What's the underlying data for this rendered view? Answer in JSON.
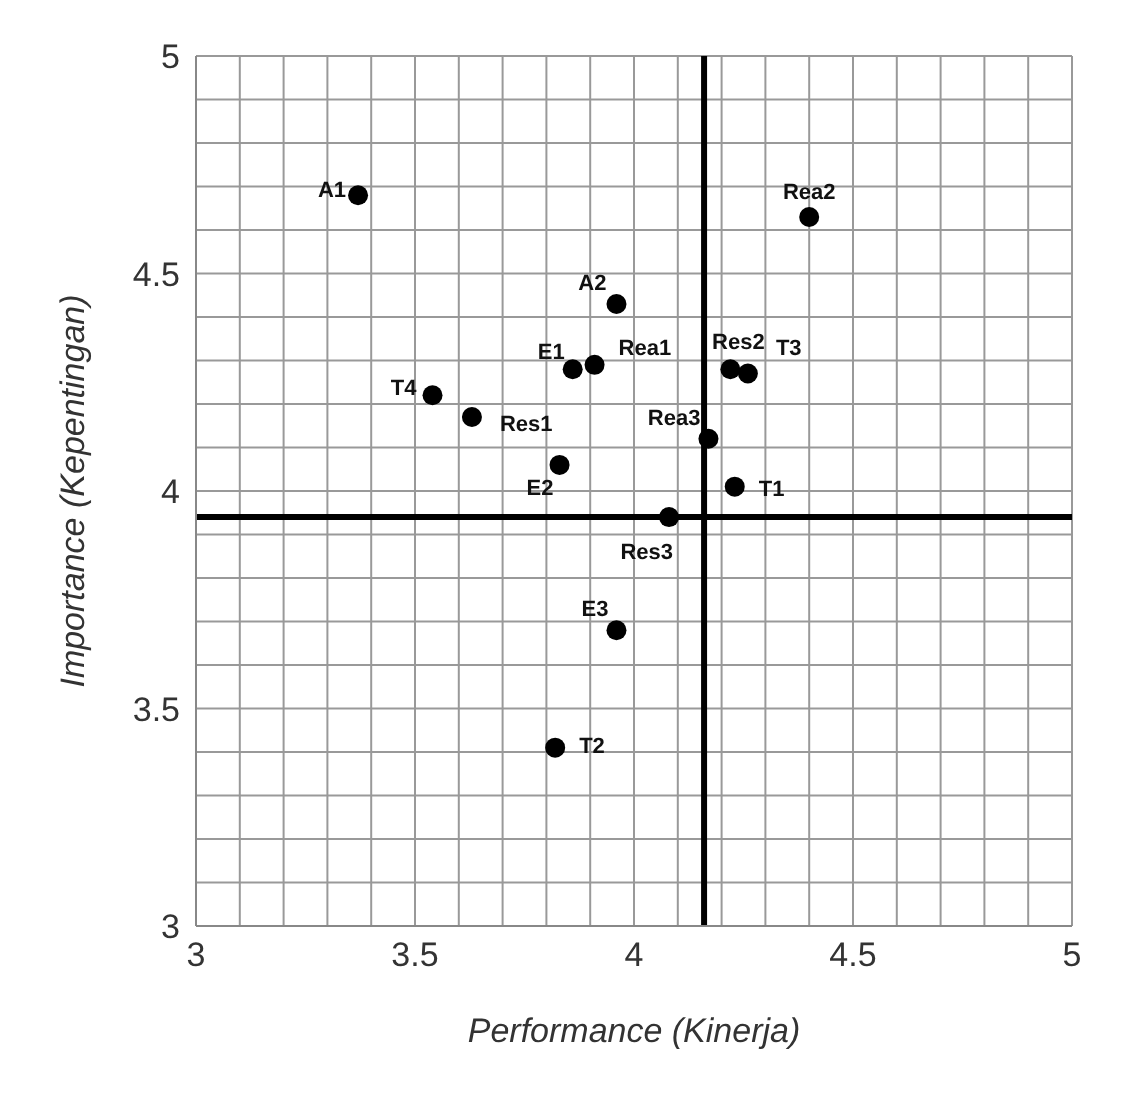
{
  "chart_data": {
    "type": "scatter",
    "xlabel": "Performance (Kinerja)",
    "ylabel": "Importance (Kepentingan)",
    "x": [
      3.37,
      4.4,
      3.96,
      3.86,
      3.91,
      4.22,
      4.26,
      3.54,
      3.63,
      4.17,
      3.83,
      4.23,
      4.08,
      3.96,
      3.82
    ],
    "series": [
      {
        "color": "#000000",
        "values": [
          4.68,
          4.63,
          4.43,
          4.28,
          4.29,
          4.28,
          4.27,
          4.22,
          4.17,
          4.12,
          4.06,
          4.01,
          3.94,
          3.68,
          3.41
        ]
      }
    ],
    "marker": "circle",
    "xlim": [
      3,
      5
    ],
    "ylim": [
      3,
      5
    ],
    "xticks": [
      3,
      {
        "value": 3.1,
        "label": null
      },
      {
        "value": 3.2,
        "label": null
      },
      {
        "value": 3.3,
        "label": null
      },
      {
        "value": 3.4,
        "label": null
      },
      3.5,
      {
        "value": 3.6,
        "label": null
      },
      {
        "value": 3.7,
        "label": null
      },
      {
        "value": 3.8,
        "label": null
      },
      {
        "value": 3.9,
        "label": null
      },
      4,
      {
        "value": 4.1,
        "label": null
      },
      {
        "value": 4.2,
        "label": null
      },
      {
        "value": 4.3,
        "label": null
      },
      {
        "value": 4.4,
        "label": null
      },
      4.5,
      {
        "value": 4.6,
        "label": null
      },
      {
        "value": 4.7,
        "label": null
      },
      {
        "value": 4.8,
        "label": null
      },
      {
        "value": 4.9,
        "label": null
      },
      5
    ],
    "yticks": [
      3,
      {
        "value": 3.1,
        "label": null
      },
      {
        "value": 3.2,
        "label": null
      },
      {
        "value": 3.3,
        "label": null
      },
      {
        "value": 3.4,
        "label": null
      },
      3.5,
      {
        "value": 3.6,
        "label": null
      },
      {
        "value": 3.7,
        "label": null
      },
      {
        "value": 3.8,
        "label": null
      },
      {
        "value": 3.9,
        "label": null
      },
      4,
      {
        "value": 4.1,
        "label": null
      },
      {
        "value": 4.2,
        "label": null
      },
      {
        "value": 4.3,
        "label": null
      },
      {
        "value": 4.4,
        "label": null
      },
      4.5,
      {
        "value": 4.6,
        "label": null
      },
      {
        "value": 4.7,
        "label": null
      },
      {
        "value": 4.8,
        "label": null
      },
      {
        "value": 4.9,
        "label": null
      },
      5
    ],
    "grid": true,
    "ref_lines": [
      {
        "axis": "x",
        "value": 4.16,
        "color": "#000000"
      },
      {
        "axis": "y",
        "value": 3.94,
        "color": "#000000"
      }
    ],
    "annotations": [
      {
        "text": "A1",
        "x": 3.37,
        "y": 4.68
      },
      {
        "text": "Rea2",
        "x": 4.4,
        "y": 4.63
      },
      {
        "text": "A2",
        "x": 3.96,
        "y": 4.43
      },
      {
        "text": "E1",
        "x": 3.86,
        "y": 4.28
      },
      {
        "text": "Rea1",
        "x": 3.91,
        "y": 4.29
      },
      {
        "text": "Res2",
        "x": 4.22,
        "y": 4.28
      },
      {
        "text": "T3",
        "x": 4.26,
        "y": 4.27
      },
      {
        "text": "T4",
        "x": 3.54,
        "y": 4.22
      },
      {
        "text": "Res1",
        "x": 3.63,
        "y": 4.17
      },
      {
        "text": "Rea3",
        "x": 4.17,
        "y": 4.12
      },
      {
        "text": "E2",
        "x": 3.83,
        "y": 4.06
      },
      {
        "text": "T1",
        "x": 4.23,
        "y": 4.01
      },
      {
        "text": "Res3",
        "x": 4.08,
        "y": 3.94
      },
      {
        "text": "E3",
        "x": 3.96,
        "y": 3.68
      },
      {
        "text": "T2",
        "x": 3.82,
        "y": 3.41
      }
    ]
  }
}
